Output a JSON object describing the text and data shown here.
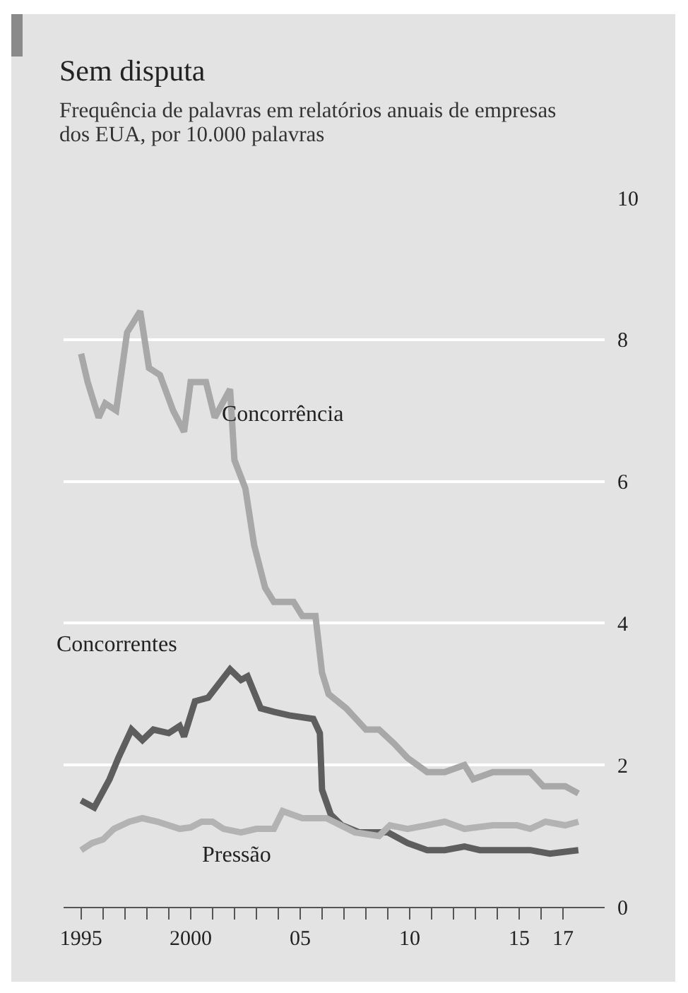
{
  "chart_data": {
    "type": "line",
    "title": "Sem disputa",
    "subtitle": "Frequência de palavras em relatórios anuais de empresas dos EUA, por 10.000 palavras",
    "xlim": [
      1994.2,
      2018.9
    ],
    "xticks": [
      1995,
      {
        "value": 1996,
        "label": null
      },
      {
        "value": 1997,
        "label": null
      },
      {
        "value": 1998,
        "label": null
      },
      {
        "value": 1999,
        "label": null
      },
      2000,
      {
        "value": 2001,
        "label": null
      },
      {
        "value": 2002,
        "label": null
      },
      {
        "value": 2003,
        "label": null
      },
      {
        "value": 2004,
        "label": null
      },
      {
        "value": 2005,
        "label": "05"
      },
      {
        "value": 2006,
        "label": null
      },
      {
        "value": 2007,
        "label": null
      },
      {
        "value": 2008,
        "label": null
      },
      {
        "value": 2009,
        "label": null
      },
      {
        "value": 2010,
        "label": "10"
      },
      {
        "value": 2011,
        "label": null
      },
      {
        "value": 2012,
        "label": null
      },
      {
        "value": 2013,
        "label": null
      },
      {
        "value": 2014,
        "label": null
      },
      {
        "value": 2015,
        "label": "15"
      },
      {
        "value": 2016,
        "label": null
      },
      {
        "value": 2017,
        "label": "17"
      }
    ],
    "ylim": [
      0,
      10
    ],
    "yticks": [
      0,
      2,
      4,
      6,
      8,
      10
    ],
    "grid": "y",
    "legend": false,
    "marker": "none",
    "line_style": "solid",
    "series": [
      {
        "name": "Concorrência",
        "color": "#a8a8a8",
        "x": [
          1995.0,
          1995.3,
          1995.8,
          1996.1,
          1996.6,
          1997.1,
          1997.7,
          1998.1,
          1998.6,
          1999.2,
          1999.7,
          2000.0,
          2000.7,
          2001.1,
          2001.8,
          2002.0,
          2002.5,
          2002.9,
          2003.4,
          2003.8,
          2004.7,
          2005.1,
          2005.7,
          2006.0,
          2006.3,
          2007.1,
          2008.0,
          2008.6,
          2009.3,
          2009.9,
          2010.8,
          2011.6,
          2012.5,
          2012.9,
          2013.8,
          2014.7,
          2015.5,
          2016.1,
          2017.1,
          2017.7
        ],
        "values": [
          7.8,
          7.4,
          6.9,
          7.1,
          7.0,
          8.1,
          8.4,
          7.6,
          7.5,
          7.0,
          6.7,
          7.4,
          7.4,
          6.9,
          7.3,
          6.3,
          5.9,
          5.1,
          4.5,
          4.3,
          4.3,
          4.1,
          4.1,
          3.3,
          3.0,
          2.8,
          2.5,
          2.5,
          2.3,
          2.1,
          1.9,
          1.9,
          2.0,
          1.8,
          1.9,
          1.9,
          1.9,
          1.7,
          1.7,
          1.6
        ]
      },
      {
        "name": "Concorrentes",
        "color": "#5e5e5e",
        "x": [
          1995.0,
          1995.6,
          1996.3,
          1996.7,
          1997.3,
          1997.8,
          1998.3,
          1999.0,
          1999.5,
          1999.7,
          2000.2,
          2000.8,
          2001.3,
          2001.8,
          2002.3,
          2002.6,
          2003.2,
          2003.8,
          2004.5,
          2005.6,
          2005.9,
          2006.0,
          2006.4,
          2006.9,
          2007.7,
          2009.0,
          2009.9,
          2010.8,
          2011.6,
          2012.5,
          2013.2,
          2014.5,
          2015.5,
          2016.4,
          2017.7
        ],
        "values": [
          1.5,
          1.4,
          1.8,
          2.1,
          2.5,
          2.35,
          2.5,
          2.45,
          2.55,
          2.4,
          2.9,
          2.95,
          3.15,
          3.35,
          3.2,
          3.25,
          2.8,
          2.75,
          2.7,
          2.65,
          2.45,
          1.65,
          1.3,
          1.15,
          1.05,
          1.05,
          0.9,
          0.8,
          0.8,
          0.85,
          0.8,
          0.8,
          0.8,
          0.75,
          0.8
        ]
      },
      {
        "name": "Pressão",
        "color": "#b3b3b3",
        "x": [
          1995.0,
          1995.5,
          1996.0,
          1996.5,
          1997.2,
          1997.8,
          1998.5,
          1999.5,
          2000.0,
          2000.5,
          2001.0,
          2001.5,
          2002.3,
          2003.0,
          2003.8,
          2004.2,
          2005.1,
          2006.2,
          2007.5,
          2008.6,
          2009.1,
          2009.9,
          2010.8,
          2011.6,
          2012.5,
          2013.8,
          2014.9,
          2015.5,
          2016.2,
          2017.1,
          2017.7
        ],
        "values": [
          0.8,
          0.9,
          0.95,
          1.1,
          1.2,
          1.25,
          1.2,
          1.1,
          1.12,
          1.2,
          1.2,
          1.1,
          1.05,
          1.1,
          1.1,
          1.35,
          1.25,
          1.25,
          1.05,
          1.0,
          1.15,
          1.1,
          1.15,
          1.2,
          1.1,
          1.15,
          1.15,
          1.1,
          1.2,
          1.15,
          1.2
        ]
      }
    ]
  }
}
